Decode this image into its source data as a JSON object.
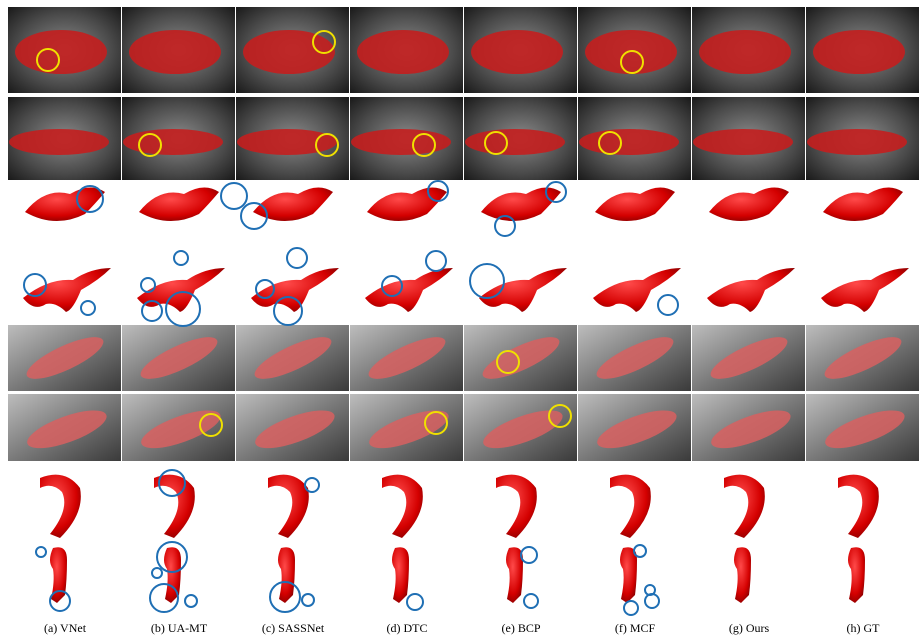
{
  "captions": [
    "(a) VNet",
    "(b) UA-MT",
    "(c) SASSNet",
    "(d) DTC",
    "(e) BCP",
    "(f) MCF",
    "(g) Ours",
    "(h) GT"
  ]
}
